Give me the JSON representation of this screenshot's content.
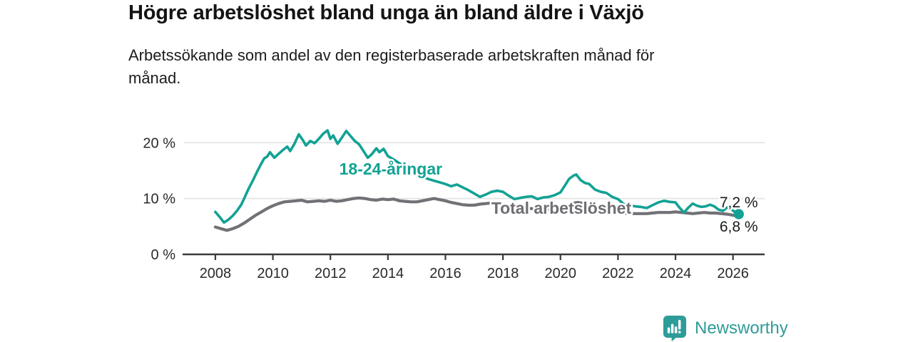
{
  "chart_data": {
    "type": "line",
    "title": "Högre arbetslöshet bland unga än bland äldre i Växjö",
    "subtitle": "Arbetssökande som andel av den registerbaserade arbetskraften månad för månad.",
    "unit": "%",
    "x_ticks": [
      2008,
      2010,
      2012,
      2014,
      2016,
      2018,
      2020,
      2022,
      2024,
      2026
    ],
    "y_ticks": [
      0,
      10,
      20
    ],
    "y_tick_labels": [
      "0 %",
      "10 %",
      "20 %"
    ],
    "xlim": [
      2006.91,
      2027.1
    ],
    "ylim": [
      0,
      24.5
    ],
    "grid": "horizontal-light",
    "legend": "inline-labels",
    "series": [
      {
        "name": "Total arbetslöshet",
        "color": "#717176",
        "line_width": 4.2,
        "end_value_label": "6,8 %",
        "end_dot": false,
        "points": [
          [
            2008.0,
            4.9
          ],
          [
            2008.2,
            4.6
          ],
          [
            2008.4,
            4.3
          ],
          [
            2008.6,
            4.6
          ],
          [
            2008.8,
            5.0
          ],
          [
            2009.0,
            5.6
          ],
          [
            2009.2,
            6.3
          ],
          [
            2009.4,
            7.0
          ],
          [
            2009.6,
            7.6
          ],
          [
            2009.8,
            8.2
          ],
          [
            2010.0,
            8.7
          ],
          [
            2010.2,
            9.1
          ],
          [
            2010.4,
            9.4
          ],
          [
            2010.6,
            9.5
          ],
          [
            2010.8,
            9.6
          ],
          [
            2011.0,
            9.7
          ],
          [
            2011.2,
            9.4
          ],
          [
            2011.4,
            9.5
          ],
          [
            2011.6,
            9.6
          ],
          [
            2011.8,
            9.5
          ],
          [
            2012.0,
            9.7
          ],
          [
            2012.2,
            9.5
          ],
          [
            2012.4,
            9.6
          ],
          [
            2012.6,
            9.8
          ],
          [
            2012.8,
            10.0
          ],
          [
            2013.0,
            10.1
          ],
          [
            2013.2,
            10.0
          ],
          [
            2013.4,
            9.8
          ],
          [
            2013.6,
            9.7
          ],
          [
            2013.8,
            9.9
          ],
          [
            2014.0,
            9.8
          ],
          [
            2014.2,
            9.9
          ],
          [
            2014.4,
            9.6
          ],
          [
            2014.6,
            9.5
          ],
          [
            2014.8,
            9.4
          ],
          [
            2015.0,
            9.4
          ],
          [
            2015.2,
            9.6
          ],
          [
            2015.4,
            9.8
          ],
          [
            2015.6,
            10.0
          ],
          [
            2015.8,
            9.8
          ],
          [
            2016.0,
            9.6
          ],
          [
            2016.2,
            9.3
          ],
          [
            2016.4,
            9.1
          ],
          [
            2016.6,
            8.9
          ],
          [
            2016.8,
            8.8
          ],
          [
            2017.0,
            8.8
          ],
          [
            2017.2,
            9.0
          ],
          [
            2017.4,
            9.1
          ],
          [
            2017.6,
            9.2
          ],
          [
            2017.8,
            9.0
          ],
          [
            2018.0,
            8.8
          ],
          [
            2018.2,
            8.5
          ],
          [
            2018.4,
            8.3
          ],
          [
            2018.6,
            8.2
          ],
          [
            2018.8,
            8.2
          ],
          [
            2019.0,
            8.2
          ],
          [
            2019.2,
            8.0
          ],
          [
            2019.4,
            8.1
          ],
          [
            2019.6,
            8.1
          ],
          [
            2019.8,
            8.2
          ],
          [
            2020.0,
            8.3
          ],
          [
            2020.2,
            8.7
          ],
          [
            2020.4,
            9.1
          ],
          [
            2020.6,
            9.3
          ],
          [
            2020.8,
            9.1
          ],
          [
            2021.0,
            8.9
          ],
          [
            2021.2,
            8.6
          ],
          [
            2021.4,
            8.3
          ],
          [
            2021.6,
            8.0
          ],
          [
            2021.8,
            7.8
          ],
          [
            2022.0,
            7.6
          ],
          [
            2022.2,
            7.4
          ],
          [
            2022.4,
            7.3
          ],
          [
            2022.6,
            7.3
          ],
          [
            2022.8,
            7.3
          ],
          [
            2023.0,
            7.3
          ],
          [
            2023.2,
            7.4
          ],
          [
            2023.4,
            7.5
          ],
          [
            2023.6,
            7.5
          ],
          [
            2023.8,
            7.5
          ],
          [
            2024.0,
            7.6
          ],
          [
            2024.2,
            7.5
          ],
          [
            2024.4,
            7.4
          ],
          [
            2024.6,
            7.3
          ],
          [
            2024.8,
            7.4
          ],
          [
            2025.0,
            7.5
          ],
          [
            2025.2,
            7.4
          ],
          [
            2025.4,
            7.4
          ],
          [
            2025.6,
            7.3
          ],
          [
            2025.8,
            7.2
          ],
          [
            2026.0,
            7.0
          ],
          [
            2026.2,
            6.8
          ]
        ]
      },
      {
        "name": "18-24-åringar",
        "color": "#12a294",
        "line_width": 3.6,
        "end_value_label": "7,2 %",
        "end_dot": true,
        "points": [
          [
            2008.0,
            7.6
          ],
          [
            2008.15,
            6.7
          ],
          [
            2008.3,
            5.7
          ],
          [
            2008.45,
            6.2
          ],
          [
            2008.6,
            6.9
          ],
          [
            2008.75,
            7.8
          ],
          [
            2008.9,
            8.9
          ],
          [
            2009.0,
            10.0
          ],
          [
            2009.15,
            11.7
          ],
          [
            2009.3,
            13.2
          ],
          [
            2009.45,
            14.8
          ],
          [
            2009.6,
            16.3
          ],
          [
            2009.7,
            17.2
          ],
          [
            2009.8,
            17.5
          ],
          [
            2009.9,
            18.3
          ],
          [
            2010.05,
            17.3
          ],
          [
            2010.2,
            18.0
          ],
          [
            2010.35,
            18.7
          ],
          [
            2010.5,
            19.3
          ],
          [
            2010.6,
            18.5
          ],
          [
            2010.75,
            19.8
          ],
          [
            2010.9,
            21.5
          ],
          [
            2011.05,
            20.4
          ],
          [
            2011.15,
            19.5
          ],
          [
            2011.3,
            20.3
          ],
          [
            2011.45,
            19.9
          ],
          [
            2011.6,
            20.7
          ],
          [
            2011.75,
            21.6
          ],
          [
            2011.9,
            22.2
          ],
          [
            2012.0,
            20.7
          ],
          [
            2012.1,
            21.3
          ],
          [
            2012.25,
            19.8
          ],
          [
            2012.4,
            20.9
          ],
          [
            2012.55,
            22.1
          ],
          [
            2012.7,
            21.2
          ],
          [
            2012.85,
            20.3
          ],
          [
            2013.0,
            19.7
          ],
          [
            2013.15,
            18.5
          ],
          [
            2013.3,
            17.3
          ],
          [
            2013.45,
            18.0
          ],
          [
            2013.6,
            19.0
          ],
          [
            2013.7,
            18.3
          ],
          [
            2013.85,
            18.9
          ],
          [
            2014.0,
            17.6
          ],
          [
            2014.2,
            17.0
          ],
          [
            2014.4,
            16.3
          ],
          [
            2014.6,
            15.8
          ],
          [
            2014.8,
            15.1
          ],
          [
            2015.0,
            14.3
          ],
          [
            2015.2,
            13.9
          ],
          [
            2015.4,
            13.5
          ],
          [
            2015.6,
            13.2
          ],
          [
            2015.8,
            12.9
          ],
          [
            2016.0,
            12.6
          ],
          [
            2016.2,
            12.2
          ],
          [
            2016.4,
            12.5
          ],
          [
            2016.6,
            12.0
          ],
          [
            2016.8,
            11.5
          ],
          [
            2017.0,
            10.9
          ],
          [
            2017.2,
            10.3
          ],
          [
            2017.4,
            10.7
          ],
          [
            2017.6,
            11.2
          ],
          [
            2017.8,
            11.4
          ],
          [
            2018.0,
            11.2
          ],
          [
            2018.2,
            10.5
          ],
          [
            2018.4,
            9.9
          ],
          [
            2018.6,
            10.1
          ],
          [
            2018.8,
            10.3
          ],
          [
            2019.0,
            10.4
          ],
          [
            2019.2,
            9.9
          ],
          [
            2019.4,
            10.2
          ],
          [
            2019.6,
            10.3
          ],
          [
            2019.8,
            10.6
          ],
          [
            2020.0,
            11.1
          ],
          [
            2020.15,
            12.3
          ],
          [
            2020.3,
            13.5
          ],
          [
            2020.45,
            14.1
          ],
          [
            2020.55,
            14.3
          ],
          [
            2020.7,
            13.3
          ],
          [
            2020.85,
            12.8
          ],
          [
            2021.0,
            12.6
          ],
          [
            2021.2,
            11.6
          ],
          [
            2021.4,
            11.2
          ],
          [
            2021.6,
            11.0
          ],
          [
            2021.8,
            10.3
          ],
          [
            2022.0,
            9.9
          ],
          [
            2022.2,
            9.0
          ],
          [
            2022.4,
            8.8
          ],
          [
            2022.6,
            8.6
          ],
          [
            2022.8,
            8.5
          ],
          [
            2023.0,
            8.3
          ],
          [
            2023.2,
            8.8
          ],
          [
            2023.4,
            9.3
          ],
          [
            2023.6,
            9.6
          ],
          [
            2023.8,
            9.4
          ],
          [
            2024.0,
            9.3
          ],
          [
            2024.15,
            8.3
          ],
          [
            2024.3,
            7.5
          ],
          [
            2024.45,
            8.4
          ],
          [
            2024.6,
            9.1
          ],
          [
            2024.75,
            8.7
          ],
          [
            2024.9,
            8.5
          ],
          [
            2025.05,
            8.6
          ],
          [
            2025.2,
            8.9
          ],
          [
            2025.35,
            8.6
          ],
          [
            2025.5,
            8.0
          ],
          [
            2025.65,
            7.8
          ],
          [
            2025.8,
            8.4
          ],
          [
            2025.95,
            8.0
          ],
          [
            2026.1,
            7.5
          ],
          [
            2026.2,
            7.2
          ]
        ]
      }
    ],
    "annotations": [
      {
        "text": "18-24-åringar",
        "x": 2014.1,
        "y": 15.3,
        "color": "#12a294",
        "bold": true,
        "size": 23
      },
      {
        "text": "Total arbetslöshet",
        "x": 2020.03,
        "y": 8.3,
        "color": "#6e6e73",
        "bold": true,
        "size": 23
      },
      {
        "text": "7,2 %",
        "x": 2026.2,
        "y": 9.45,
        "color": "#1a1a1a",
        "bold": false,
        "size": 21
      },
      {
        "text": "6,8 %",
        "x": 2026.2,
        "y": 5.1,
        "color": "#1a1a1a",
        "bold": false,
        "size": 21
      }
    ]
  },
  "branding": {
    "logo_text": "Newsworthy",
    "logo_icon": "bar-chart-speech-bubble",
    "logo_color": "#2e9c98"
  },
  "colors": {
    "background": "#ffffff",
    "grid": "#e3e3e3",
    "axis": "#3a3a3a",
    "tick_label": "#2a2a2a",
    "halo": "#ffffff"
  }
}
